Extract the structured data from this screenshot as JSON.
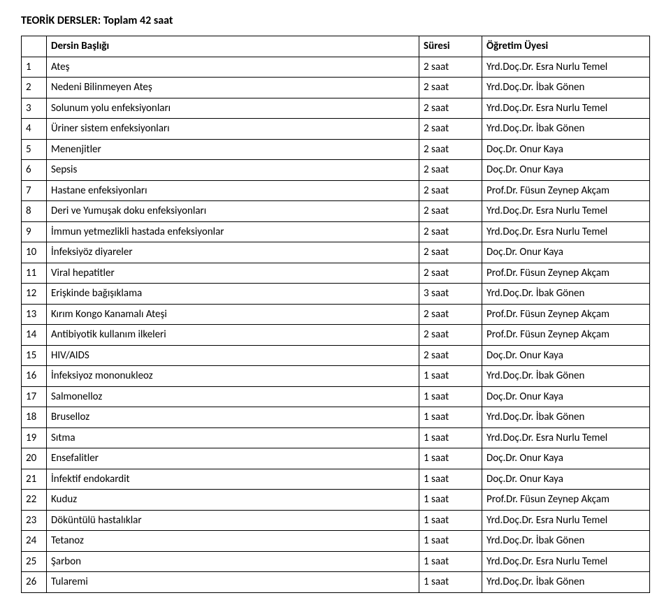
{
  "title": "TEORİK DERSLER: Toplam 42 saat",
  "columns": {
    "num": "",
    "title": "Dersin Başlığı",
    "duration": "Süresi",
    "instructor": "Öğretim Üyesi"
  },
  "rows": [
    {
      "n": "1",
      "t": "Ateş",
      "d": "2 saat",
      "i": "Yrd.Doç.Dr. Esra Nurlu Temel"
    },
    {
      "n": "2",
      "t": "Nedeni Bilinmeyen Ateş",
      "d": "2 saat",
      "i": "Yrd.Doç.Dr. İbak Gönen"
    },
    {
      "n": "3",
      "t": "Solunum yolu enfeksiyonları",
      "d": "2 saat",
      "i": "Yrd.Doç.Dr. Esra Nurlu Temel"
    },
    {
      "n": "4",
      "t": "Üriner sistem enfeksiyonları",
      "d": "2 saat",
      "i": "Yrd.Doç.Dr. İbak Gönen"
    },
    {
      "n": "5",
      "t": "Menenjitler",
      "d": "2 saat",
      "i": "Doç.Dr. Onur Kaya"
    },
    {
      "n": "6",
      "t": "Sepsis",
      "d": "2 saat",
      "i": "Doç.Dr. Onur Kaya"
    },
    {
      "n": "7",
      "t": "Hastane enfeksiyonları",
      "d": "2 saat",
      "i": "Prof.Dr. Füsun Zeynep Akçam"
    },
    {
      "n": "8",
      "t": "Deri ve Yumuşak doku enfeksiyonları",
      "d": "2 saat",
      "i": "Yrd.Doç.Dr. Esra Nurlu Temel"
    },
    {
      "n": "9",
      "t": "İmmun yetmezlikli hastada enfeksiyonlar",
      "d": "2 saat",
      "i": "Yrd.Doç.Dr. Esra Nurlu Temel"
    },
    {
      "n": "10",
      "t": "İnfeksiyöz diyareler",
      "d": "2 saat",
      "i": "Doç.Dr. Onur Kaya"
    },
    {
      "n": "11",
      "t": "Viral hepatitler",
      "d": "2 saat",
      "i": "Prof.Dr. Füsun Zeynep Akçam"
    },
    {
      "n": "12",
      "t": "Erişkinde bağışıklama",
      "d": "3 saat",
      "i": "Yrd.Doç.Dr. İbak Gönen"
    },
    {
      "n": "13",
      "t": "Kırım Kongo Kanamalı Ateşi",
      "d": "2 saat",
      "i": "Prof.Dr. Füsun Zeynep Akçam"
    },
    {
      "n": "14",
      "t": "Antibiyotik kullanım ilkeleri",
      "d": "2 saat",
      "i": "Prof.Dr. Füsun Zeynep Akçam"
    },
    {
      "n": "15",
      "t": "HIV/AIDS",
      "d": "2 saat",
      "i": "Doç.Dr. Onur Kaya"
    },
    {
      "n": "16",
      "t": "İnfeksiyoz mononukleoz",
      "d": "1 saat",
      "i": "Yrd.Doç.Dr. İbak Gönen"
    },
    {
      "n": "17",
      "t": "Salmonelloz",
      "d": "1 saat",
      "i": "Doç.Dr. Onur Kaya"
    },
    {
      "n": "18",
      "t": "Bruselloz",
      "d": "1 saat",
      "i": "Yrd.Doç.Dr. İbak Gönen"
    },
    {
      "n": "19",
      "t": "Sıtma",
      "d": "1 saat",
      "i": "Yrd.Doç.Dr. Esra Nurlu Temel"
    },
    {
      "n": "20",
      "t": "Ensefalitler",
      "d": "1 saat",
      "i": "Doç.Dr. Onur Kaya"
    },
    {
      "n": "21",
      "t": "İnfektif endokardit",
      "d": "1 saat",
      "i": "Doç.Dr. Onur Kaya"
    },
    {
      "n": "22",
      "t": "Kuduz",
      "d": "1 saat",
      "i": "Prof.Dr. Füsun Zeynep Akçam"
    },
    {
      "n": "23",
      "t": "Döküntülü hastalıklar",
      "d": "1 saat",
      "i": "Yrd.Doç.Dr. Esra Nurlu Temel"
    },
    {
      "n": "24",
      "t": "Tetanoz",
      "d": "1 saat",
      "i": "Yrd.Doç.Dr. İbak Gönen"
    },
    {
      "n": "25",
      "t": "Şarbon",
      "d": "1 saat",
      "i": "Yrd.Doç.Dr. Esra Nurlu Temel"
    },
    {
      "n": "26",
      "t": "Tularemi",
      "d": "1 saat",
      "i": "Yrd.Doç.Dr. İbak Gönen"
    }
  ]
}
